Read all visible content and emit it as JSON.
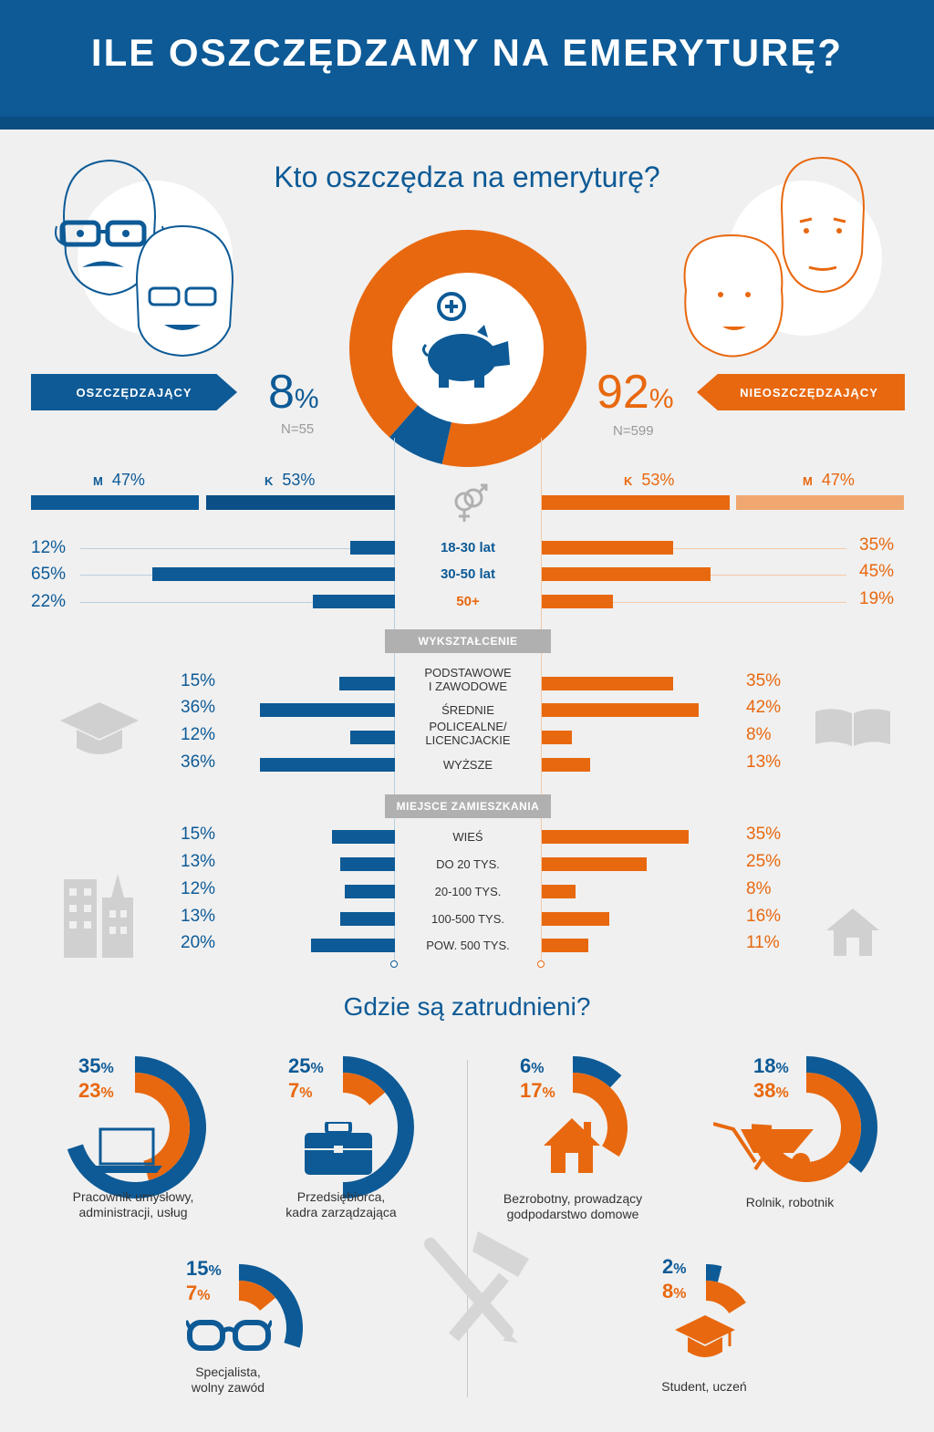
{
  "title": "ILE OSZCZĘDZAMY NA EMERYTURĘ?",
  "who": {
    "heading": "Kto oszczędza na emeryturę?",
    "savers": {
      "label": "OSZCZĘDZAJĄCY",
      "pct": "8",
      "unit": "%",
      "n": "N=55"
    },
    "nonsavers": {
      "label": "NIEOSZCZĘDZAJĄCY",
      "pct": "92",
      "unit": "%",
      "n": "N=599"
    }
  },
  "gender": {
    "left": {
      "m_letter": "M",
      "m_pct": "47%",
      "k_letter": "K",
      "k_pct": "53%"
    },
    "right": {
      "k_letter": "K",
      "k_pct": "53%",
      "m_letter": "M",
      "m_pct": "47%"
    }
  },
  "age": [
    {
      "label": "18-30 lat",
      "left": "12%",
      "right": "35%"
    },
    {
      "label": "30-50 lat",
      "left": "65%",
      "right": "45%"
    },
    {
      "label": "50+",
      "left": "22%",
      "right": "19%"
    }
  ],
  "education": {
    "heading": "WYKSZTAŁCENIE",
    "rows": [
      {
        "label": "PODSTAWOWE\nI ZAWODOWE",
        "left": "15%",
        "right": "35%"
      },
      {
        "label": "ŚREDNIE",
        "left": "36%",
        "right": "42%"
      },
      {
        "label": "POLICEALNE/\nLICENCJACKIE",
        "left": "12%",
        "right": "8%"
      },
      {
        "label": "WYŻSZE",
        "left": "36%",
        "right": "13%"
      }
    ]
  },
  "residence": {
    "heading": "MIEJSCE ZAMIESZKANIA",
    "rows": [
      {
        "label": "WIEŚ",
        "left": "15%",
        "right": "35%"
      },
      {
        "label": "DO 20 TYS.",
        "left": "13%",
        "right": "25%"
      },
      {
        "label": "20-100 TYS.",
        "left": "12%",
        "right": "8%"
      },
      {
        "label": "100-500 TYS.",
        "left": "13%",
        "right": "16%"
      },
      {
        "label": "POW. 500 TYS.",
        "left": "20%",
        "right": "11%"
      }
    ]
  },
  "jobs": {
    "heading": "Gdzie są zatrudnieni?",
    "items": [
      {
        "label": "Pracownik umysłowy,\nadministracji, usług",
        "blue": "35",
        "orange": "23"
      },
      {
        "label": "Przedsiębiorca,\nkadra zarządzająca",
        "blue": "25",
        "orange": "7"
      },
      {
        "label": "Bezrobotny, prowadzący\ngodpodarstwo domowe",
        "blue": "6",
        "orange": "17"
      },
      {
        "label": "Rolnik, robotnik",
        "blue": "18",
        "orange": "38"
      },
      {
        "label": "Specjalista,\nwolny zawód",
        "blue": "15",
        "orange": "7"
      },
      {
        "label": "Student, uczeń",
        "blue": "2",
        "orange": "8"
      }
    ]
  },
  "colors": {
    "blue": "#0d5a96",
    "orange": "#e8680f",
    "light_orange": "#f0a870",
    "grey": "#b0b0b0"
  },
  "chart_data": [
    {
      "type": "pie",
      "title": "Kto oszczędza na emeryturę?",
      "categories": [
        "OSZCZĘDZAJĄCY",
        "NIEOSZCZĘDZAJĄCY"
      ],
      "values": [
        8,
        92
      ]
    },
    {
      "type": "bar",
      "categories": [
        "M",
        "K"
      ],
      "series": [
        {
          "name": "OSZCZĘDZAJĄCY",
          "values": [
            47,
            53
          ]
        },
        {
          "name": "NIEOSZCZĘDZAJĄCY",
          "values": [
            47,
            53
          ]
        }
      ]
    },
    {
      "type": "bar",
      "categories": [
        "18-30 lat",
        "30-50 lat",
        "50+"
      ],
      "series": [
        {
          "name": "OSZCZĘDZAJĄCY",
          "values": [
            12,
            65,
            22
          ]
        },
        {
          "name": "NIEOSZCZĘDZAJĄCY",
          "values": [
            35,
            45,
            19
          ]
        }
      ]
    },
    {
      "type": "bar",
      "title": "WYKSZTAŁCENIE",
      "categories": [
        "PODSTAWOWE I ZAWODOWE",
        "ŚREDNIE",
        "POLICEALNE/ LICENCJACKIE",
        "WYŻSZE"
      ],
      "series": [
        {
          "name": "OSZCZĘDZAJĄCY",
          "values": [
            15,
            36,
            12,
            36
          ]
        },
        {
          "name": "NIEOSZCZĘDZAJĄCY",
          "values": [
            35,
            42,
            8,
            13
          ]
        }
      ]
    },
    {
      "type": "bar",
      "title": "MIEJSCE ZAMIESZKANIA",
      "categories": [
        "WIEŚ",
        "DO 20 TYS.",
        "20-100 TYS.",
        "100-500 TYS.",
        "POW. 500 TYS."
      ],
      "series": [
        {
          "name": "OSZCZĘDZAJĄCY",
          "values": [
            15,
            13,
            12,
            13,
            20
          ]
        },
        {
          "name": "NIEOSZCZĘDZAJĄCY",
          "values": [
            35,
            25,
            8,
            16,
            11
          ]
        }
      ]
    },
    {
      "type": "bar",
      "title": "Gdzie są zatrudnieni?",
      "categories": [
        "Pracownik umysłowy, administracji, usług",
        "Przedsiębiorca, kadra zarządzająca",
        "Bezrobotny, prowadzący godpodarstwo domowe",
        "Rolnik, robotnik",
        "Specjalista, wolny zawód",
        "Student, uczeń"
      ],
      "series": [
        {
          "name": "OSZCZĘDZAJĄCY",
          "values": [
            35,
            25,
            6,
            18,
            15,
            2
          ]
        },
        {
          "name": "NIEOSZCZĘDZAJĄCY",
          "values": [
            23,
            7,
            17,
            38,
            7,
            8
          ]
        }
      ]
    }
  ]
}
